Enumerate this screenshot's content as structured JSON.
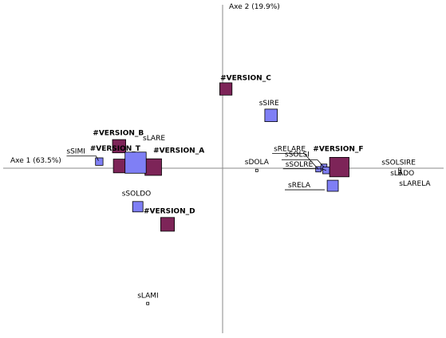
{
  "chart_data": {
    "type": "scatter",
    "title": "",
    "xlabel": "Axe 1 (63.5%)",
    "ylabel": "Axe 2 (19.9%)",
    "xlim": [
      -2.0,
      2.0
    ],
    "ylim": [
      -1.5,
      1.5
    ],
    "grid": false,
    "colors": {
      "variable": "#7F7FF5",
      "version": "#7D2458",
      "point": "#FFFFFF"
    },
    "points": [
      {
        "label": "#VERSION_C",
        "group": "version",
        "x": 0.03,
        "y": 0.72,
        "weight": 0.9,
        "bold": true
      },
      {
        "label": "#VERSION_B",
        "group": "version",
        "x": -0.94,
        "y": 0.2,
        "weight": 1.1,
        "bold": true
      },
      {
        "label": "#VERSION_T",
        "group": "version",
        "x": -0.93,
        "y": 0.02,
        "weight": 1.2,
        "bold": true
      },
      {
        "label": "#VERSION_A",
        "group": "version",
        "x": -0.63,
        "y": 0.01,
        "weight": 1.8,
        "bold": true
      },
      {
        "label": "#VERSION_D",
        "group": "version",
        "x": -0.5,
        "y": -0.51,
        "weight": 1.2,
        "bold": true
      },
      {
        "label": "#VERSION_F",
        "group": "version",
        "x": 1.06,
        "y": 0.01,
        "weight": 2.4,
        "bold": true
      },
      {
        "label": "sSIRE",
        "group": "variable",
        "x": 0.44,
        "y": 0.48,
        "weight": 1.3
      },
      {
        "label": "sLARE",
        "group": "variable",
        "x": -0.79,
        "y": 0.05,
        "weight": 2.5
      },
      {
        "label": "sSIMI",
        "group": "variable",
        "x": -1.12,
        "y": 0.06,
        "weight": 0.6
      },
      {
        "label": "sSOLDO",
        "group": "variable",
        "x": -0.77,
        "y": -0.35,
        "weight": 1.0
      },
      {
        "label": "sLAMI",
        "group": "variable",
        "x": -0.68,
        "y": -1.23,
        "weight": 0.15
      },
      {
        "label": "sDOLA",
        "group": "variable",
        "x": 0.31,
        "y": -0.02,
        "weight": 0.15
      },
      {
        "label": "sRELARE",
        "group": "variable",
        "x": 0.87,
        "y": -0.01,
        "weight": 0.3
      },
      {
        "label": "sSOLSI",
        "group": "variable",
        "x": 0.92,
        "y": 0.01,
        "weight": 0.4
      },
      {
        "label": "sSOLRE",
        "group": "variable",
        "x": 0.94,
        "y": -0.02,
        "weight": 0.5
      },
      {
        "label": "sRELA",
        "group": "variable",
        "x": 1.0,
        "y": -0.16,
        "weight": 1.1
      },
      {
        "label": "sSOLSIRE",
        "group": "variable",
        "x": 1.61,
        "y": -0.01,
        "weight": 0.15
      },
      {
        "label": "sLADO",
        "group": "variable",
        "x": 1.61,
        "y": -0.03,
        "weight": 0.15
      },
      {
        "label": "sLARELA",
        "group": "variable",
        "x": 1.61,
        "y": -0.05,
        "weight": 0.15
      }
    ]
  }
}
